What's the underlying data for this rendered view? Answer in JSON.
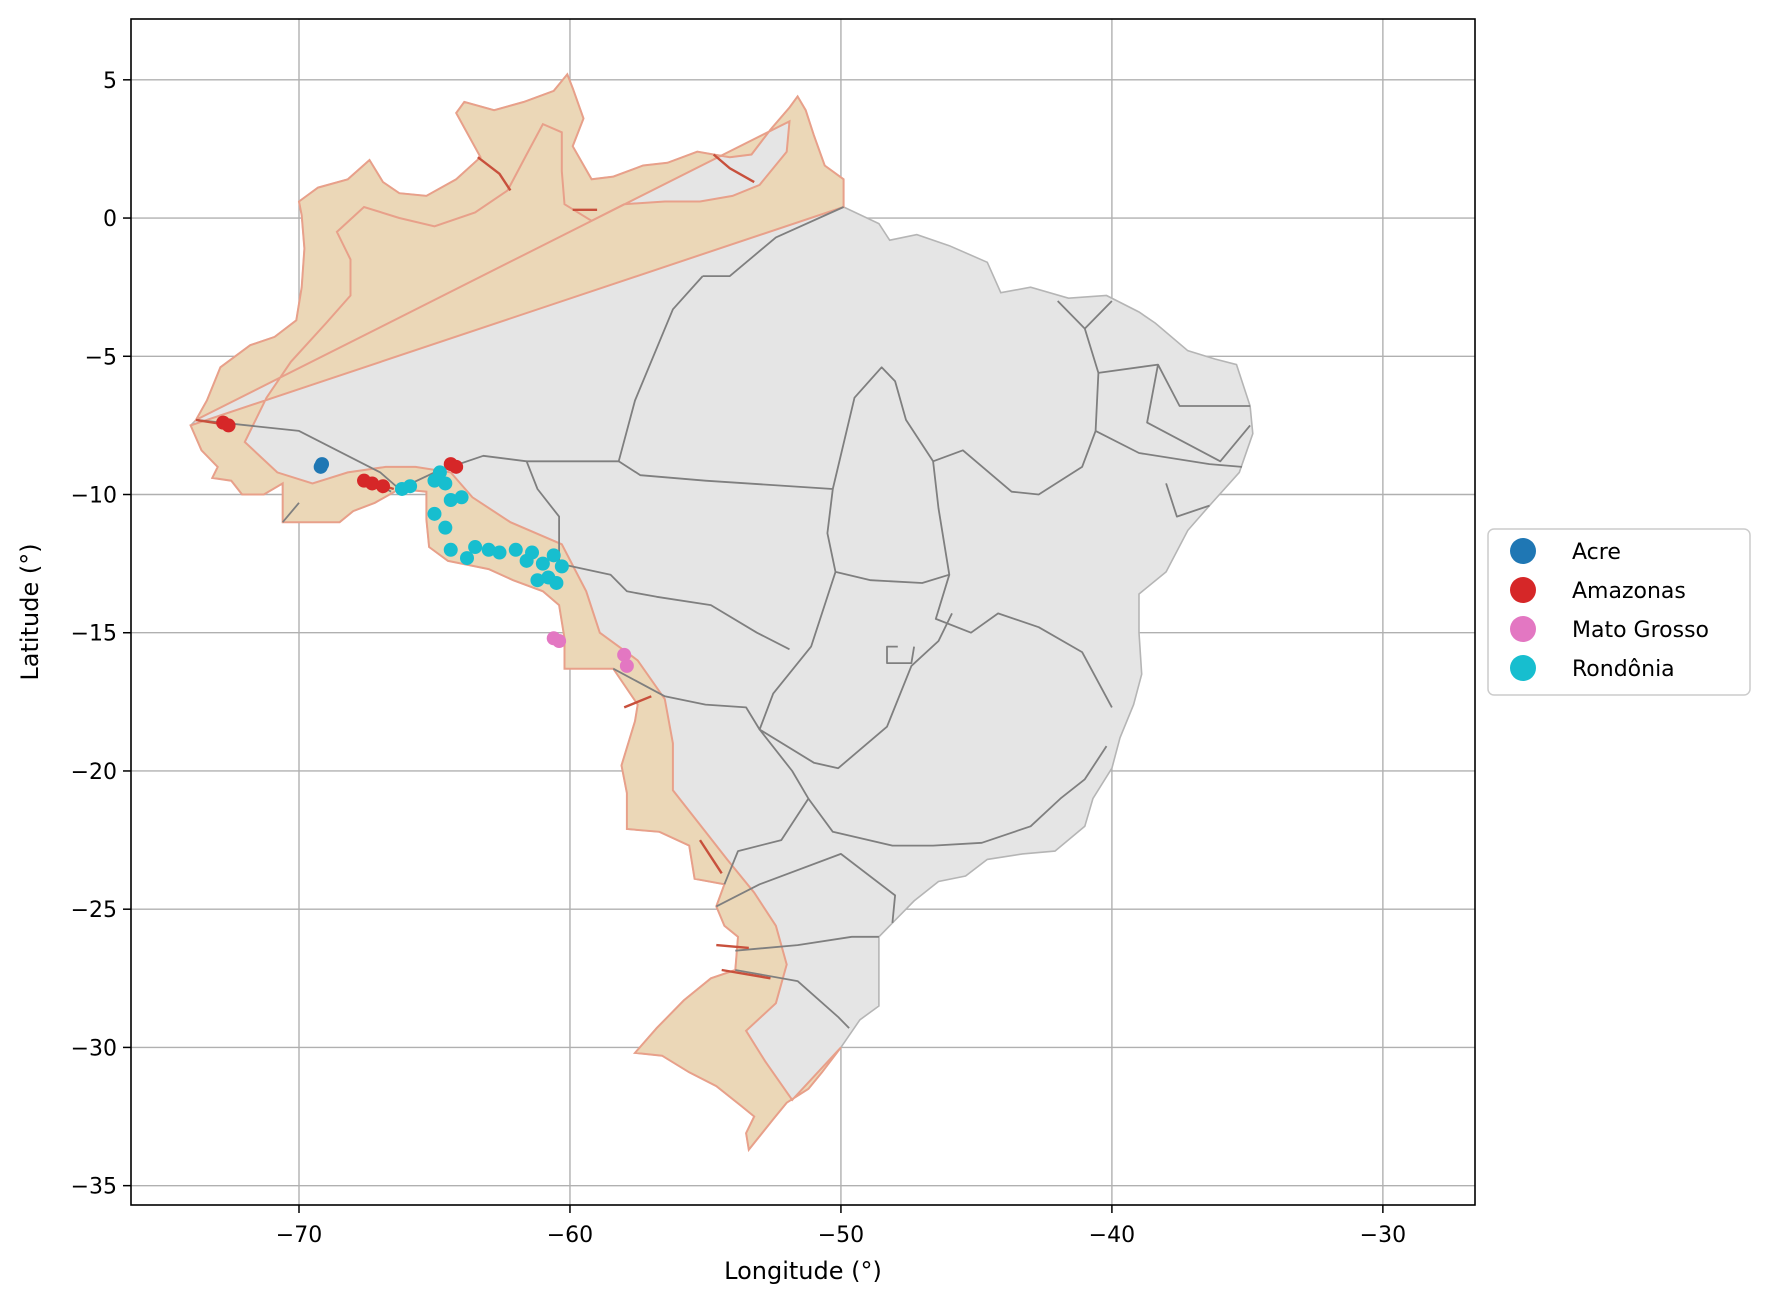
{
  "figure": {
    "xlabel": "Longitude (°)",
    "ylabel": "Latitude (°)"
  },
  "chart_data": {
    "type": "scatter",
    "subtype": "choropleth-map",
    "title": "",
    "xlabel": "Longitude (°)",
    "ylabel": "Latitude (°)",
    "xlim": [
      -76.2,
      -26.6
    ],
    "ylim": [
      -35.7,
      7.2
    ],
    "grid": true,
    "legend_position": "center-right, outside plot",
    "x_ticks": [
      -70,
      -60,
      -50,
      -40,
      -30
    ],
    "x_tick_labels": [
      "−70",
      "−60",
      "−50",
      "−40",
      "−30"
    ],
    "y_ticks": [
      5,
      0,
      -5,
      -10,
      -15,
      -20,
      -25,
      -30,
      -35
    ],
    "y_tick_labels": [
      "5",
      "0",
      "−5",
      "−10",
      "−15",
      "−20",
      "−25",
      "−30",
      "−35"
    ],
    "layers": {
      "country_fill": "#e5e5e5",
      "state_border_color": "#7f7f7f",
      "frontier_band_fill": "#ebd6b4",
      "frontier_band_edge": "#e8a08a",
      "frontier_border_line": "#c8503c"
    },
    "legend": [
      {
        "name": "Acre",
        "color": "#1f77b4"
      },
      {
        "name": "Amazonas",
        "color": "#d62728"
      },
      {
        "name": "Mato Grosso",
        "color": "#e377c2"
      },
      {
        "name": "Rondônia",
        "color": "#17becf"
      }
    ],
    "series": [
      {
        "name": "Acre",
        "color": "#1f77b4",
        "points": [
          [
            -69.2,
            -9.0
          ],
          [
            -69.15,
            -8.9
          ]
        ]
      },
      {
        "name": "Amazonas",
        "color": "#d62728",
        "points": [
          [
            -72.8,
            -7.4
          ],
          [
            -72.6,
            -7.5
          ],
          [
            -67.6,
            -9.5
          ],
          [
            -67.3,
            -9.6
          ],
          [
            -66.9,
            -9.7
          ],
          [
            -64.4,
            -8.9
          ],
          [
            -64.2,
            -9.0
          ]
        ]
      },
      {
        "name": "Mato Grosso",
        "color": "#e377c2",
        "points": [
          [
            -60.6,
            -15.2
          ],
          [
            -60.4,
            -15.3
          ],
          [
            -58.0,
            -15.8
          ],
          [
            -57.9,
            -16.2
          ]
        ]
      },
      {
        "name": "Rondônia",
        "color": "#17becf",
        "points": [
          [
            -66.2,
            -9.8
          ],
          [
            -65.9,
            -9.7
          ],
          [
            -65.0,
            -9.5
          ],
          [
            -64.8,
            -9.2
          ],
          [
            -64.6,
            -9.6
          ],
          [
            -64.4,
            -10.2
          ],
          [
            -64.0,
            -10.1
          ],
          [
            -65.0,
            -10.7
          ],
          [
            -64.6,
            -11.2
          ],
          [
            -64.4,
            -12.0
          ],
          [
            -63.8,
            -12.3
          ],
          [
            -63.5,
            -11.9
          ],
          [
            -63.0,
            -12.0
          ],
          [
            -62.6,
            -12.1
          ],
          [
            -62.0,
            -12.0
          ],
          [
            -61.6,
            -12.4
          ],
          [
            -61.4,
            -12.1
          ],
          [
            -61.0,
            -12.5
          ],
          [
            -60.6,
            -12.2
          ],
          [
            -60.3,
            -12.6
          ],
          [
            -60.8,
            -13.0
          ],
          [
            -61.2,
            -13.1
          ],
          [
            -60.5,
            -13.2
          ]
        ]
      }
    ]
  }
}
